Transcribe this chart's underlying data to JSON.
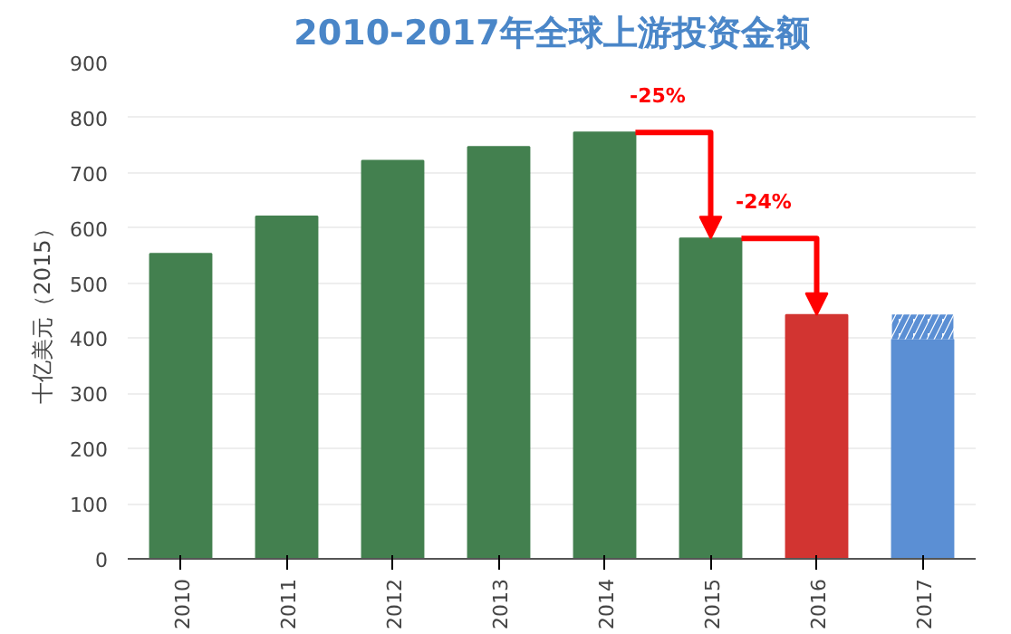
{
  "chart_data": {
    "type": "bar",
    "title": "2010-2017年全球上游投资金额",
    "ylabel": "十亿美元（2015）",
    "categories": [
      "2010",
      "2011",
      "2012",
      "2013",
      "2014",
      "2015",
      "2016",
      "2017"
    ],
    "stacked": true,
    "series": [
      {
        "colors": [
          "#43804f",
          "#43804f",
          "#43804f",
          "#43804f",
          "#43804f",
          "#43804f",
          "#d23431",
          "#5b8fd4"
        ],
        "values": [
          553,
          621,
          722,
          747,
          773,
          581,
          442,
          398
        ]
      },
      {
        "color": "#5b8fd4",
        "values": [
          null,
          null,
          null,
          null,
          null,
          null,
          null,
          45
        ]
      }
    ],
    "ylim": [
      0,
      900
    ],
    "yticks": [
      0,
      100,
      200,
      300,
      400,
      500,
      600,
      700,
      800,
      900
    ],
    "grid": "y",
    "annotations": [
      {
        "text": "-25%",
        "x": "2015",
        "y": 581
      },
      {
        "text": "-24%",
        "x": "2016",
        "y": 442
      }
    ]
  }
}
